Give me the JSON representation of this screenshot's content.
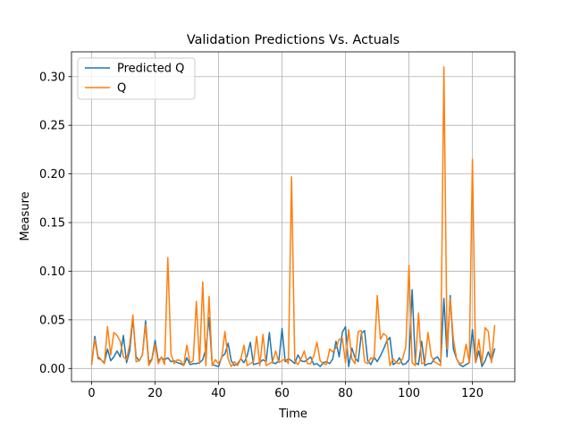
{
  "chart_data": {
    "type": "line",
    "title": "Validation Predictions Vs. Actuals",
    "xlabel": "Time",
    "ylabel": "Measure",
    "xlim": [
      -6.35,
      133.35
    ],
    "ylim": [
      -0.0135,
      0.3255
    ],
    "grid": true,
    "legend_position": "top-left",
    "xticks": [
      0,
      20,
      40,
      60,
      80,
      100,
      120
    ],
    "yticks": [
      0.0,
      0.05,
      0.1,
      0.15,
      0.2,
      0.25,
      0.3
    ],
    "xtick_labels": [
      "0",
      "20",
      "40",
      "60",
      "80",
      "100",
      "120"
    ],
    "ytick_labels": [
      "0.00",
      "0.05",
      "0.10",
      "0.15",
      "0.20",
      "0.25",
      "0.30"
    ],
    "x": [
      0,
      1,
      2,
      3,
      4,
      5,
      6,
      7,
      8,
      9,
      10,
      11,
      12,
      13,
      14,
      15,
      16,
      17,
      18,
      19,
      20,
      21,
      22,
      23,
      24,
      25,
      26,
      27,
      28,
      29,
      30,
      31,
      32,
      33,
      34,
      35,
      36,
      37,
      38,
      39,
      40,
      41,
      42,
      43,
      44,
      45,
      46,
      47,
      48,
      49,
      50,
      51,
      52,
      53,
      54,
      55,
      56,
      57,
      58,
      59,
      60,
      61,
      62,
      63,
      64,
      65,
      66,
      67,
      68,
      69,
      70,
      71,
      72,
      73,
      74,
      75,
      76,
      77,
      78,
      79,
      80,
      81,
      82,
      83,
      84,
      85,
      86,
      87,
      88,
      89,
      90,
      91,
      92,
      93,
      94,
      95,
      96,
      97,
      98,
      99,
      100,
      101,
      102,
      103,
      104,
      105,
      106,
      107,
      108,
      109,
      110,
      111,
      112,
      113,
      114,
      115,
      116,
      117,
      118,
      119,
      120,
      121,
      122,
      123,
      124,
      125,
      126,
      127
    ],
    "series": [
      {
        "name": "Predicted Q",
        "color": "#1f77b4",
        "values": [
          0.005,
          0.033,
          0.012,
          0.009,
          0.006,
          0.02,
          0.008,
          0.012,
          0.018,
          0.012,
          0.034,
          0.006,
          0.018,
          0.052,
          0.012,
          0.008,
          0.014,
          0.049,
          0.006,
          0.01,
          0.029,
          0.008,
          0.011,
          0.009,
          0.011,
          0.007,
          0.008,
          0.006,
          0.005,
          0.003,
          0.011,
          0.004,
          0.005,
          0.005,
          0.006,
          0.009,
          0.02,
          0.052,
          0.004,
          0.003,
          0.002,
          0.012,
          0.015,
          0.026,
          0.008,
          0.003,
          0.005,
          0.01,
          0.006,
          0.013,
          0.027,
          0.004,
          0.005,
          0.006,
          0.009,
          0.007,
          0.037,
          0.006,
          0.005,
          0.008,
          0.041,
          0.007,
          0.01,
          0.008,
          0.005,
          0.014,
          0.008,
          0.007,
          0.009,
          0.012,
          0.004,
          0.005,
          0.002,
          0.006,
          0.007,
          0.005,
          0.01,
          0.028,
          0.012,
          0.037,
          0.043,
          0.002,
          0.021,
          0.011,
          0.007,
          0.036,
          0.039,
          0.008,
          0.004,
          0.012,
          0.007,
          0.013,
          0.02,
          0.028,
          0.032,
          0.004,
          0.006,
          0.011,
          0.004,
          0.005,
          0.009,
          0.081,
          0.006,
          0.004,
          0.028,
          0.003,
          0.005,
          0.005,
          0.01,
          0.012,
          0.006,
          0.072,
          0.012,
          0.075,
          0.02,
          0.01,
          0.004,
          0.002,
          0.004,
          0.006,
          0.04,
          0.006,
          0.018,
          0.002,
          0.008,
          0.017,
          0.008,
          0.02
        ]
      },
      {
        "name": "Q",
        "color": "#ff7f0e",
        "values": [
          0.004,
          0.03,
          0.01,
          0.009,
          0.005,
          0.043,
          0.014,
          0.037,
          0.034,
          0.028,
          0.012,
          0.009,
          0.025,
          0.055,
          0.007,
          0.008,
          0.014,
          0.045,
          0.003,
          0.009,
          0.025,
          0.005,
          0.012,
          0.004,
          0.114,
          0.015,
          0.005,
          0.009,
          0.008,
          0.003,
          0.024,
          0.006,
          0.008,
          0.069,
          0.005,
          0.089,
          0.003,
          0.074,
          0.003,
          0.009,
          0.005,
          0.011,
          0.038,
          0.01,
          0.002,
          0.007,
          0.003,
          0.01,
          0.024,
          0.003,
          0.005,
          0.007,
          0.033,
          0.003,
          0.035,
          0.003,
          0.005,
          0.007,
          0.018,
          0.006,
          0.008,
          0.01,
          0.005,
          0.197,
          0.008,
          0.004,
          0.01,
          0.018,
          0.005,
          0.005,
          0.013,
          0.027,
          0.008,
          0.005,
          0.004,
          0.02,
          0.017,
          0.021,
          0.03,
          0.031,
          0.006,
          0.04,
          0.01,
          0.005,
          0.038,
          0.039,
          0.007,
          0.005,
          0.011,
          0.009,
          0.075,
          0.03,
          0.036,
          0.033,
          0.003,
          0.01,
          0.006,
          0.005,
          0.01,
          0.022,
          0.106,
          0.006,
          0.003,
          0.057,
          0.005,
          0.006,
          0.037,
          0.013,
          0.007,
          0.005,
          0.003,
          0.31,
          0.02,
          0.072,
          0.03,
          0.01,
          0.005,
          0.006,
          0.025,
          0.006,
          0.215,
          0.006,
          0.03,
          0.005,
          0.042,
          0.038,
          0.006,
          0.044
        ]
      }
    ]
  }
}
